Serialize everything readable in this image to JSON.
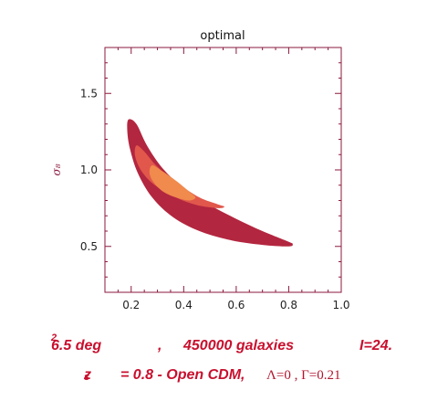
{
  "chart_data": {
    "type": "contour",
    "title": "optimal",
    "xlabel": "",
    "ylabel": "σ₈",
    "xlim": [
      0.1,
      1.0
    ],
    "ylim": [
      0.2,
      1.8
    ],
    "x_ticks": [
      0.2,
      0.4,
      0.6,
      0.8,
      1.0
    ],
    "x_tick_labels": [
      "0.2",
      "0.4",
      "0.6",
      "0.8",
      "1.0"
    ],
    "y_ticks": [
      0.5,
      1.0,
      1.5
    ],
    "y_tick_labels": [
      "0.5",
      "1.0",
      "1.5"
    ],
    "grid": false,
    "levels": [
      {
        "name": "outer",
        "color": "#b3263f",
        "points": [
          [
            0.19,
            1.33
          ],
          [
            0.22,
            1.3
          ],
          [
            0.26,
            1.16
          ],
          [
            0.32,
            1.01
          ],
          [
            0.4,
            0.88
          ],
          [
            0.5,
            0.77
          ],
          [
            0.6,
            0.68
          ],
          [
            0.7,
            0.6
          ],
          [
            0.8,
            0.53
          ],
          [
            0.815,
            0.515
          ],
          [
            0.8,
            0.5
          ],
          [
            0.7,
            0.51
          ],
          [
            0.58,
            0.54
          ],
          [
            0.46,
            0.6
          ],
          [
            0.36,
            0.69
          ],
          [
            0.28,
            0.82
          ],
          [
            0.225,
            0.98
          ],
          [
            0.195,
            1.14
          ],
          [
            0.185,
            1.26
          ]
        ]
      },
      {
        "name": "middle",
        "color": "#e1574b",
        "points": [
          [
            0.22,
            1.16
          ],
          [
            0.25,
            1.12
          ],
          [
            0.3,
            1.02
          ],
          [
            0.38,
            0.91
          ],
          [
            0.46,
            0.82
          ],
          [
            0.53,
            0.775
          ],
          [
            0.555,
            0.76
          ],
          [
            0.53,
            0.75
          ],
          [
            0.45,
            0.77
          ],
          [
            0.37,
            0.82
          ],
          [
            0.29,
            0.9
          ],
          [
            0.24,
            0.99
          ],
          [
            0.215,
            1.09
          ]
        ]
      },
      {
        "name": "inner",
        "color": "#f08a4d",
        "points": [
          [
            0.28,
            1.03
          ],
          [
            0.32,
            0.99
          ],
          [
            0.37,
            0.93
          ],
          [
            0.42,
            0.86
          ],
          [
            0.445,
            0.82
          ],
          [
            0.42,
            0.8
          ],
          [
            0.37,
            0.82
          ],
          [
            0.32,
            0.86
          ],
          [
            0.285,
            0.92
          ],
          [
            0.27,
            0.98
          ]
        ]
      }
    ]
  },
  "caption": {
    "line1": {
      "area": "6.5  deg",
      "area_exp": "2",
      "sep": ",",
      "galaxies": "450000  galaxies",
      "mag": "I=24."
    },
    "line2": {
      "z": "z",
      "z_sub": "s",
      "model": "= 0.8 - Open CDM,",
      "params": "Λ=0 ,  Γ=0.21"
    }
  },
  "colors": {
    "frame": "#8b1a3c",
    "caption": "#c8102e"
  }
}
